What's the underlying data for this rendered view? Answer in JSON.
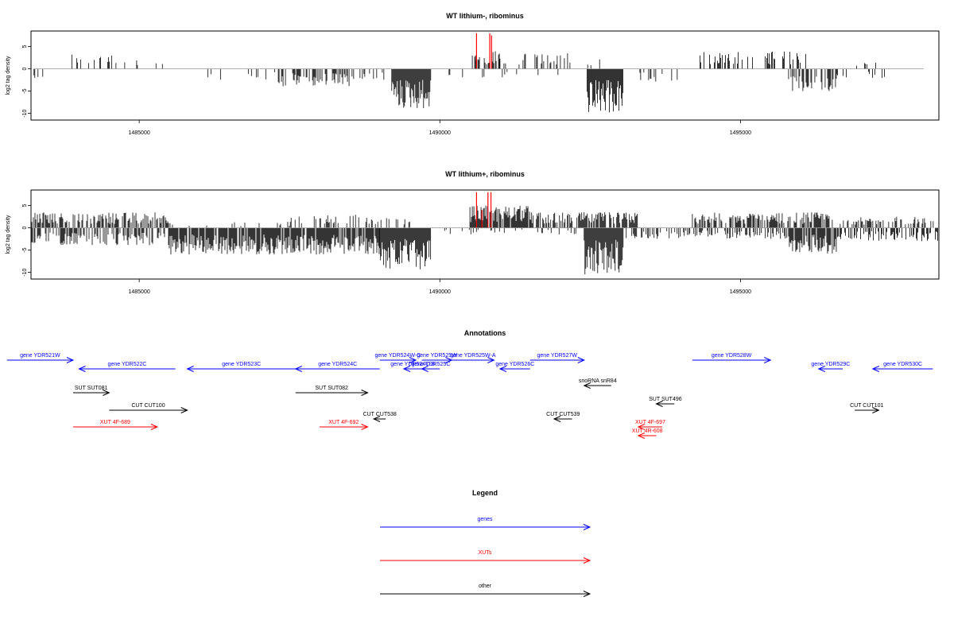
{
  "chart_data": [
    {
      "type": "bar",
      "title": "WT lithium-, ribominus",
      "xlabel": "",
      "ylabel": "log2 tag density",
      "xlim": [
        1483200,
        1498300
      ],
      "ylim": [
        -11.5,
        8.5
      ],
      "x_ticks": [
        1485000,
        1490000,
        1495000
      ],
      "x_tick_labels": [
        "1485000",
        "1490000",
        "1495000"
      ],
      "y_ticks": [
        5,
        0,
        -5,
        -10
      ],
      "y_tick_labels": [
        "5",
        "0",
        "-5",
        "-10"
      ],
      "baseline": 0,
      "highlight_color": "#ff0000",
      "bar_color": "#000000",
      "highlights": [
        {
          "x": 1490610,
          "y": 8
        },
        {
          "x": 1490830,
          "y": 8
        },
        {
          "x": 1490860,
          "y": 7.5
        }
      ],
      "positive_segments": [
        {
          "start": 1483800,
          "end": 1484600,
          "max": 3.5,
          "density": 0.25
        },
        {
          "start": 1484600,
          "end": 1485000,
          "max": 2,
          "density": 0.12
        },
        {
          "start": 1485200,
          "end": 1485400,
          "max": 2.5,
          "density": 0.2
        },
        {
          "start": 1490500,
          "end": 1491000,
          "max": 4,
          "density": 0.5
        },
        {
          "start": 1491000,
          "end": 1492200,
          "max": 3.5,
          "density": 0.3
        },
        {
          "start": 1492300,
          "end": 1492700,
          "max": 2.5,
          "density": 0.2
        },
        {
          "start": 1494300,
          "end": 1496100,
          "max": 4,
          "density": 0.3
        },
        {
          "start": 1496800,
          "end": 1497300,
          "max": 1.5,
          "density": 0.15
        }
      ],
      "negative_segments": [
        {
          "start": 1483250,
          "end": 1483400,
          "min": -4,
          "density": 0.3
        },
        {
          "start": 1486100,
          "end": 1487300,
          "min": -2.5,
          "density": 0.12
        },
        {
          "start": 1487300,
          "end": 1488500,
          "min": -4,
          "density": 0.5
        },
        {
          "start": 1488500,
          "end": 1489100,
          "min": -3,
          "density": 0.25
        },
        {
          "start": 1489200,
          "end": 1489850,
          "min": -9,
          "density": 1
        },
        {
          "start": 1490100,
          "end": 1492200,
          "min": -2,
          "density": 0.08
        },
        {
          "start": 1492450,
          "end": 1493050,
          "min": -10,
          "density": 1
        },
        {
          "start": 1493300,
          "end": 1494500,
          "min": -3,
          "density": 0.05
        },
        {
          "start": 1495800,
          "end": 1496600,
          "min": -5,
          "density": 0.6
        },
        {
          "start": 1496600,
          "end": 1497400,
          "min": -2.5,
          "density": 0.25
        }
      ]
    },
    {
      "type": "bar",
      "title": "WT lithium+, ribominus",
      "xlabel": "",
      "ylabel": "log2 tag density",
      "xlim": [
        1483200,
        1498300
      ],
      "ylim": [
        -11.5,
        8.5
      ],
      "x_ticks": [
        1485000,
        1490000,
        1495000
      ],
      "x_tick_labels": [
        "1485000",
        "1490000",
        "1495000"
      ],
      "y_ticks": [
        5,
        0,
        -5,
        -10
      ],
      "y_tick_labels": [
        "5",
        "0",
        "-5",
        "-10"
      ],
      "baseline": 0,
      "highlight_color": "#ff0000",
      "bar_color": "#000000",
      "highlights": [
        {
          "x": 1490610,
          "y": 8
        },
        {
          "x": 1490800,
          "y": 8
        },
        {
          "x": 1490850,
          "y": 8
        },
        {
          "x": 1490700,
          "y": 4
        }
      ],
      "positive_segments": [
        {
          "start": 1483200,
          "end": 1485500,
          "max": 3.5,
          "density": 0.6
        },
        {
          "start": 1485500,
          "end": 1487500,
          "max": 1.5,
          "density": 0.1
        },
        {
          "start": 1487500,
          "end": 1489500,
          "max": 3,
          "density": 0.3
        },
        {
          "start": 1490500,
          "end": 1491500,
          "max": 5,
          "density": 0.9
        },
        {
          "start": 1491500,
          "end": 1493300,
          "max": 3.5,
          "density": 0.7
        },
        {
          "start": 1494200,
          "end": 1496500,
          "max": 3.5,
          "density": 0.7
        },
        {
          "start": 1496500,
          "end": 1498300,
          "max": 2.5,
          "density": 0.4
        }
      ],
      "negative_segments": [
        {
          "start": 1483200,
          "end": 1485500,
          "min": -4,
          "density": 0.5
        },
        {
          "start": 1485500,
          "end": 1489000,
          "min": -6,
          "density": 0.9
        },
        {
          "start": 1489000,
          "end": 1489850,
          "min": -9.5,
          "density": 1
        },
        {
          "start": 1490000,
          "end": 1492300,
          "min": -1.5,
          "density": 0.15
        },
        {
          "start": 1492400,
          "end": 1493050,
          "min": -10.5,
          "density": 1
        },
        {
          "start": 1493100,
          "end": 1495800,
          "min": -2.5,
          "density": 0.35
        },
        {
          "start": 1495800,
          "end": 1496600,
          "min": -6,
          "density": 0.9
        },
        {
          "start": 1496600,
          "end": 1498300,
          "min": -3,
          "density": 0.5
        }
      ]
    }
  ],
  "annotations": {
    "title": "Annotations",
    "xlim": [
      1483200,
      1498300
    ],
    "colors": {
      "gene": "#0000ff",
      "xut": "#ff0000",
      "other": "#000000"
    },
    "features": [
      {
        "label": "gene YDR521W",
        "kind": "gene",
        "start": 1482800,
        "end": 1483900,
        "strand": "+",
        "row": 0
      },
      {
        "label": "gene YDR522C",
        "kind": "gene",
        "start": 1484000,
        "end": 1485600,
        "strand": "-",
        "row": 1
      },
      {
        "label": "gene YDR523C",
        "kind": "gene",
        "start": 1485800,
        "end": 1487600,
        "strand": "-",
        "row": 1
      },
      {
        "label": "gene YDR524C",
        "kind": "gene",
        "start": 1487600,
        "end": 1489000,
        "strand": "-",
        "row": 1
      },
      {
        "label": "gene YDR524W-C",
        "kind": "gene",
        "start": 1489000,
        "end": 1489600,
        "strand": "+",
        "row": 0
      },
      {
        "label": "gene YDR524C-B",
        "kind": "gene",
        "start": 1489400,
        "end": 1489700,
        "strand": "-",
        "row": 1
      },
      {
        "label": "gene YDR525W",
        "kind": "gene",
        "start": 1489700,
        "end": 1490200,
        "strand": "+",
        "row": 0
      },
      {
        "label": "gene YDR525C",
        "kind": "gene",
        "start": 1489700,
        "end": 1490000,
        "strand": "-",
        "row": 1
      },
      {
        "label": "gene YDR525W-A",
        "kind": "gene",
        "start": 1490200,
        "end": 1490900,
        "strand": "+",
        "row": 0
      },
      {
        "label": "gene YDR526C",
        "kind": "gene",
        "start": 1491000,
        "end": 1491500,
        "strand": "-",
        "row": 1
      },
      {
        "label": "gene YDR527W",
        "kind": "gene",
        "start": 1491500,
        "end": 1492400,
        "strand": "+",
        "row": 0
      },
      {
        "label": "gene YDR528W",
        "kind": "gene",
        "start": 1494200,
        "end": 1495500,
        "strand": "+",
        "row": 0
      },
      {
        "label": "gene YDR529C",
        "kind": "gene",
        "start": 1496300,
        "end": 1496700,
        "strand": "-",
        "row": 1
      },
      {
        "label": "gene YDR530C",
        "kind": "gene",
        "start": 1497200,
        "end": 1498200,
        "strand": "-",
        "row": 1
      },
      {
        "label": "snoRNA snR84",
        "kind": "other",
        "start": 1492400,
        "end": 1492850,
        "strand": "-",
        "row": 2
      },
      {
        "label": "SUT SUT081",
        "kind": "other",
        "start": 1483900,
        "end": 1484500,
        "strand": "+",
        "row": 3
      },
      {
        "label": "SUT SUT082",
        "kind": "other",
        "start": 1487600,
        "end": 1488800,
        "strand": "+",
        "row": 3
      },
      {
        "label": "SUT SUT496",
        "kind": "other",
        "start": 1493600,
        "end": 1493900,
        "strand": "-",
        "row": 4
      },
      {
        "label": "CUT CUT100",
        "kind": "other",
        "start": 1484500,
        "end": 1485800,
        "strand": "+",
        "row": 5
      },
      {
        "label": "CUT CUT101",
        "kind": "other",
        "start": 1496900,
        "end": 1497300,
        "strand": "+",
        "row": 5
      },
      {
        "label": "CUT CUT538",
        "kind": "other",
        "start": 1488900,
        "end": 1489100,
        "strand": "-",
        "row": 6
      },
      {
        "label": "CUT CUT539",
        "kind": "other",
        "start": 1491900,
        "end": 1492200,
        "strand": "-",
        "row": 6
      },
      {
        "label": "XUT 4F-689",
        "kind": "xut",
        "start": 1483900,
        "end": 1485300,
        "strand": "+",
        "row": 7
      },
      {
        "label": "XUT 4F-692",
        "kind": "xut",
        "start": 1488000,
        "end": 1488800,
        "strand": "+",
        "row": 7
      },
      {
        "label": "XUT 4F-697",
        "kind": "xut",
        "start": 1493300,
        "end": 1493700,
        "strand": "-",
        "row": 7
      },
      {
        "label": "XUT 4R-608",
        "kind": "xut",
        "start": 1493300,
        "end": 1493600,
        "strand": "-",
        "row": 8
      }
    ]
  },
  "legend": {
    "title": "Legend",
    "items": [
      {
        "label": "genes",
        "color": "#0000ff"
      },
      {
        "label": "XUTs",
        "color": "#ff0000"
      },
      {
        "label": "other",
        "color": "#000000"
      }
    ]
  }
}
